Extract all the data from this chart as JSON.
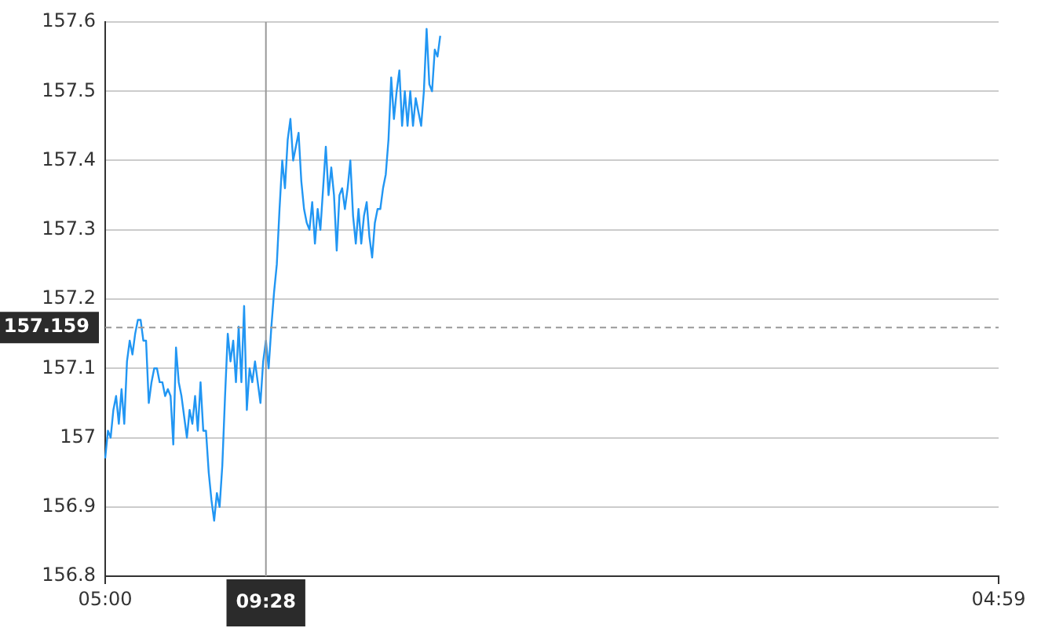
{
  "chart_data": {
    "type": "line",
    "categories": [
      "05:00",
      null,
      null,
      null,
      null,
      null,
      null,
      null,
      null,
      null,
      null,
      null,
      null,
      null,
      null,
      null,
      null,
      null,
      null,
      null,
      null,
      null,
      null,
      null,
      null,
      null,
      null,
      null,
      null,
      null,
      null,
      null,
      null,
      null,
      null,
      null,
      null,
      null,
      null,
      null,
      null,
      null,
      null,
      null,
      null,
      null,
      null,
      null,
      null,
      null,
      null,
      null,
      null,
      null,
      null,
      null,
      null,
      null,
      null,
      "09:28",
      null,
      null,
      null,
      null,
      null,
      null,
      null,
      null,
      null,
      null,
      null,
      null,
      null,
      null,
      null,
      null,
      null,
      null,
      null,
      null,
      null,
      null,
      null,
      null,
      null,
      null,
      null,
      null,
      null,
      null,
      null,
      null,
      null,
      null,
      null,
      null,
      null,
      null,
      null,
      null,
      null,
      null,
      null,
      null,
      null,
      null,
      null,
      null,
      null,
      null,
      null,
      null,
      null,
      null,
      null,
      null,
      null,
      null,
      null,
      null,
      null,
      null,
      null,
      null,
      null,
      null,
      null,
      null,
      null,
      null,
      null,
      null,
      null,
      null,
      null,
      null,
      null,
      null,
      null,
      null,
      null,
      null,
      null,
      null,
      null,
      null,
      null,
      null,
      null,
      null,
      null,
      null,
      null,
      null,
      null,
      null,
      null,
      null,
      null,
      null,
      null,
      null,
      null,
      null,
      null,
      null,
      null,
      null,
      null,
      null,
      null,
      null,
      null,
      null,
      null,
      null,
      null,
      null,
      null,
      null,
      null,
      null,
      null,
      null,
      null,
      null,
      null,
      null,
      null,
      null,
      null,
      null,
      null,
      null,
      null,
      null,
      null,
      null,
      null,
      null,
      null,
      null,
      null,
      null,
      null,
      null,
      null,
      null,
      null,
      null,
      null,
      null,
      null,
      null,
      null,
      null,
      null,
      null,
      null,
      null,
      null,
      null,
      null,
      null,
      null,
      null,
      null,
      null,
      null,
      null,
      null,
      null,
      null,
      null,
      null,
      null,
      null,
      null,
      null,
      null,
      null,
      null,
      null,
      null,
      null,
      null,
      null,
      null,
      null,
      null,
      null,
      null,
      null,
      null,
      null,
      null,
      null,
      null,
      null,
      null,
      null,
      null,
      null,
      null,
      null,
      null,
      null,
      null,
      null,
      null,
      null,
      null,
      null,
      null,
      null,
      null,
      null,
      null,
      null,
      null,
      null,
      null,
      null,
      null,
      null,
      null,
      null,
      null,
      null,
      null,
      null,
      null,
      null,
      null,
      null,
      null,
      null,
      null,
      null,
      null,
      null,
      null,
      null,
      null,
      null,
      null,
      null,
      null,
      null,
      null,
      null,
      null,
      null,
      null,
      null,
      null,
      null,
      null,
      null,
      null,
      null,
      null,
      null,
      null,
      null,
      null,
      null,
      null,
      "04:59"
    ],
    "series": [
      {
        "color": "#2196f3",
        "values": [
          156.97,
          157.01,
          157.0,
          157.04,
          157.06,
          157.02,
          157.07,
          157.02,
          157.11,
          157.14,
          157.12,
          157.15,
          157.17,
          157.17,
          157.14,
          157.14,
          157.05,
          157.08,
          157.1,
          157.1,
          157.08,
          157.08,
          157.06,
          157.07,
          157.06,
          156.99,
          157.13,
          157.08,
          157.06,
          157.03,
          157.0,
          157.04,
          157.02,
          157.06,
          157.01,
          157.08,
          157.01,
          157.01,
          156.95,
          156.91,
          156.88,
          156.92,
          156.9,
          156.96,
          157.06,
          157.15,
          157.11,
          157.14,
          157.08,
          157.16,
          157.08,
          157.19,
          157.04,
          157.1,
          157.08,
          157.11,
          157.08,
          157.05,
          157.11,
          157.14,
          157.1,
          157.16,
          157.21,
          157.25,
          157.33,
          157.4,
          157.36,
          157.43,
          157.46,
          157.4,
          157.42,
          157.44,
          157.37,
          157.33,
          157.31,
          157.3,
          157.34,
          157.28,
          157.33,
          157.3,
          157.36,
          157.42,
          157.35,
          157.39,
          157.35,
          157.27,
          157.35,
          157.36,
          157.33,
          157.36,
          157.4,
          157.32,
          157.28,
          157.33,
          157.28,
          157.32,
          157.34,
          157.29,
          157.26,
          157.31,
          157.33,
          157.33,
          157.36,
          157.38,
          157.43,
          157.52,
          157.46,
          157.5,
          157.53,
          157.45,
          157.5,
          157.45,
          157.5,
          157.45,
          157.49,
          157.47,
          157.45,
          157.5,
          157.59,
          157.51,
          157.5,
          157.56,
          157.55,
          157.58,
          null,
          null,
          null,
          null,
          null,
          null,
          null,
          null,
          null,
          null,
          null,
          null,
          null,
          null,
          null,
          null,
          null,
          null,
          null,
          null,
          null,
          null,
          null,
          null,
          null,
          null,
          null,
          null,
          null,
          null,
          null,
          null,
          null,
          null,
          null,
          null,
          null,
          null,
          null,
          null,
          null,
          null,
          null,
          null,
          null,
          null,
          null,
          null,
          null,
          null,
          null,
          null,
          null,
          null,
          null,
          null,
          null,
          null,
          null,
          null,
          null,
          null,
          null,
          null,
          null,
          null,
          null,
          null,
          null,
          null,
          null,
          null,
          null,
          null,
          null,
          null,
          null,
          null,
          null,
          null,
          null,
          null,
          null,
          null,
          null,
          null,
          null,
          null,
          null,
          null,
          null,
          null,
          null,
          null,
          null,
          null,
          null,
          null,
          null,
          null,
          null,
          null,
          null,
          null,
          null,
          null,
          null,
          null,
          null,
          null,
          null,
          null,
          null,
          null,
          null,
          null,
          null,
          null,
          null,
          null,
          null,
          null,
          null,
          null,
          null,
          null,
          null,
          null,
          null,
          null,
          null,
          null,
          null,
          null,
          null,
          null,
          null,
          null,
          null,
          null,
          null,
          null,
          null,
          null,
          null,
          null,
          null,
          null,
          null,
          null,
          null,
          null,
          null,
          null,
          null,
          null,
          null,
          null,
          null,
          null,
          null,
          null,
          null,
          null,
          null,
          null,
          null,
          null,
          null,
          null,
          null,
          null,
          null,
          null,
          null,
          null,
          null,
          null,
          null,
          null,
          null,
          null,
          null,
          null,
          null,
          null,
          null,
          null,
          null,
          null,
          null,
          null,
          null,
          null,
          null,
          null,
          null,
          null,
          null,
          null,
          null,
          null,
          null,
          null,
          null
        ]
      }
    ],
    "ylim": [
      156.8,
      157.6
    ],
    "yticks": [
      156.8,
      156.9,
      157,
      157.1,
      157.2,
      157.3,
      157.4,
      157.5,
      157.6
    ],
    "grid": "y",
    "legend": false,
    "marker": "none",
    "line_style": "solid",
    "ref_lines": [
      {
        "axis": "x",
        "value": "09:28",
        "color": "#999999",
        "line_style": "solid"
      },
      {
        "axis": "y",
        "value": 157.159,
        "label": "157.159",
        "color": "#999999",
        "line_style": "dashed"
      }
    ]
  }
}
